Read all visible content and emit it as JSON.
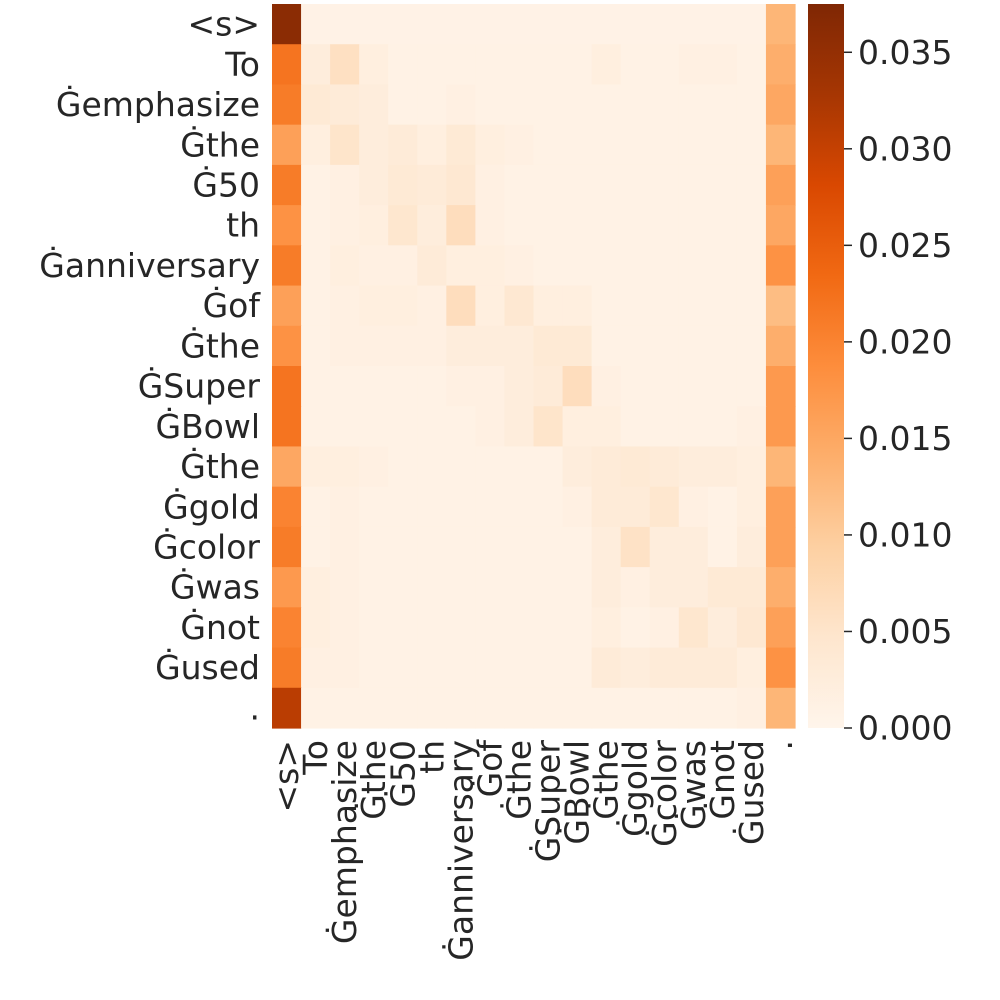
{
  "chart_data": {
    "type": "heatmap",
    "title": "",
    "xlabel": "",
    "ylabel": "",
    "colormap": "Oranges",
    "colormap_stops": [
      "#fff5eb",
      "#fee6ce",
      "#fdd0a2",
      "#fdae6b",
      "#fd8d3c",
      "#f16913",
      "#d94801",
      "#a63603",
      "#7f2704"
    ],
    "vmin": 0.0,
    "vmax": 0.0375,
    "x_labels": [
      "<s>",
      "To",
      "Ġemphasize",
      "Ġthe",
      "Ġ50",
      "th",
      "Ġanniversary",
      "Ġof",
      "Ġthe",
      "ĠSuper",
      "ĠBowl",
      "Ġthe",
      "Ġgold",
      "Ġcolor",
      "Ġwas",
      "Ġnot",
      "Ġused",
      "."
    ],
    "y_labels": [
      "<s>",
      "To",
      "Ġemphasize",
      "Ġthe",
      "Ġ50",
      "th",
      "Ġanniversary",
      "Ġof",
      "Ġthe",
      "ĠSuper",
      "ĠBowl",
      "Ġthe",
      "Ġgold",
      "Ġcolor",
      "Ġwas",
      "Ġnot",
      "Ġused",
      "."
    ],
    "values": [
      [
        0.036,
        0.0008,
        0.0008,
        0.0008,
        0.0008,
        0.0008,
        0.0008,
        0.0008,
        0.0008,
        0.0008,
        0.0008,
        0.0008,
        0.0008,
        0.0008,
        0.0008,
        0.0008,
        0.0008,
        0.013
      ],
      [
        0.022,
        0.0025,
        0.006,
        0.002,
        0.001,
        0.001,
        0.001,
        0.001,
        0.001,
        0.001,
        0.001,
        0.002,
        0.001,
        0.001,
        0.0015,
        0.0015,
        0.001,
        0.014
      ],
      [
        0.021,
        0.0035,
        0.003,
        0.0025,
        0.001,
        0.001,
        0.0015,
        0.001,
        0.001,
        0.001,
        0.001,
        0.001,
        0.001,
        0.001,
        0.001,
        0.001,
        0.001,
        0.015
      ],
      [
        0.016,
        0.002,
        0.005,
        0.0025,
        0.003,
        0.002,
        0.0035,
        0.002,
        0.0015,
        0.001,
        0.001,
        0.001,
        0.001,
        0.001,
        0.001,
        0.001,
        0.001,
        0.013
      ],
      [
        0.021,
        0.001,
        0.0015,
        0.0025,
        0.0035,
        0.003,
        0.004,
        0.0015,
        0.001,
        0.001,
        0.001,
        0.001,
        0.001,
        0.001,
        0.001,
        0.001,
        0.001,
        0.016
      ],
      [
        0.018,
        0.001,
        0.0015,
        0.002,
        0.0045,
        0.0025,
        0.0065,
        0.0015,
        0.001,
        0.001,
        0.001,
        0.001,
        0.001,
        0.001,
        0.001,
        0.001,
        0.001,
        0.015
      ],
      [
        0.021,
        0.001,
        0.002,
        0.0015,
        0.0015,
        0.003,
        0.002,
        0.002,
        0.0015,
        0.001,
        0.001,
        0.001,
        0.001,
        0.001,
        0.001,
        0.001,
        0.001,
        0.018
      ],
      [
        0.016,
        0.001,
        0.0015,
        0.002,
        0.002,
        0.0015,
        0.0065,
        0.002,
        0.004,
        0.002,
        0.002,
        0.001,
        0.001,
        0.001,
        0.001,
        0.001,
        0.001,
        0.012
      ],
      [
        0.018,
        0.001,
        0.0015,
        0.0015,
        0.0015,
        0.0015,
        0.0025,
        0.0025,
        0.0025,
        0.0035,
        0.0035,
        0.001,
        0.001,
        0.001,
        0.001,
        0.001,
        0.001,
        0.014
      ],
      [
        0.022,
        0.001,
        0.001,
        0.001,
        0.001,
        0.001,
        0.0015,
        0.0015,
        0.0025,
        0.003,
        0.0065,
        0.0015,
        0.001,
        0.001,
        0.001,
        0.001,
        0.001,
        0.017
      ],
      [
        0.022,
        0.001,
        0.001,
        0.001,
        0.001,
        0.001,
        0.001,
        0.0015,
        0.0025,
        0.005,
        0.002,
        0.002,
        0.001,
        0.001,
        0.001,
        0.001,
        0.0015,
        0.017
      ],
      [
        0.015,
        0.002,
        0.002,
        0.0015,
        0.001,
        0.001,
        0.001,
        0.001,
        0.001,
        0.001,
        0.0025,
        0.003,
        0.0035,
        0.003,
        0.0025,
        0.0025,
        0.002,
        0.013
      ],
      [
        0.02,
        0.001,
        0.0015,
        0.001,
        0.001,
        0.001,
        0.001,
        0.001,
        0.001,
        0.001,
        0.0015,
        0.003,
        0.003,
        0.0045,
        0.0015,
        0.001,
        0.002,
        0.016
      ],
      [
        0.021,
        0.001,
        0.0015,
        0.001,
        0.001,
        0.001,
        0.001,
        0.001,
        0.001,
        0.001,
        0.001,
        0.0025,
        0.0055,
        0.0025,
        0.0025,
        0.001,
        0.0025,
        0.016
      ],
      [
        0.017,
        0.002,
        0.0015,
        0.001,
        0.001,
        0.001,
        0.001,
        0.001,
        0.001,
        0.001,
        0.001,
        0.0025,
        0.0015,
        0.0025,
        0.0025,
        0.0035,
        0.0035,
        0.014
      ],
      [
        0.02,
        0.002,
        0.0015,
        0.001,
        0.001,
        0.001,
        0.001,
        0.001,
        0.001,
        0.001,
        0.001,
        0.002,
        0.001,
        0.0015,
        0.0045,
        0.0025,
        0.004,
        0.016
      ],
      [
        0.021,
        0.0015,
        0.0015,
        0.001,
        0.001,
        0.001,
        0.001,
        0.001,
        0.001,
        0.001,
        0.001,
        0.003,
        0.0025,
        0.003,
        0.003,
        0.003,
        0.002,
        0.018
      ],
      [
        0.031,
        0.001,
        0.001,
        0.001,
        0.001,
        0.001,
        0.001,
        0.001,
        0.001,
        0.001,
        0.001,
        0.001,
        0.001,
        0.001,
        0.001,
        0.001,
        0.0015,
        0.013
      ]
    ],
    "colorbar_ticks": [
      "0.000",
      "0.005",
      "0.010",
      "0.015",
      "0.020",
      "0.025",
      "0.030",
      "0.035"
    ],
    "colorbar_tick_values": [
      0.0,
      0.005,
      0.01,
      0.015,
      0.02,
      0.025,
      0.03,
      0.035
    ],
    "grid": false,
    "legend": "colorbar-right"
  }
}
